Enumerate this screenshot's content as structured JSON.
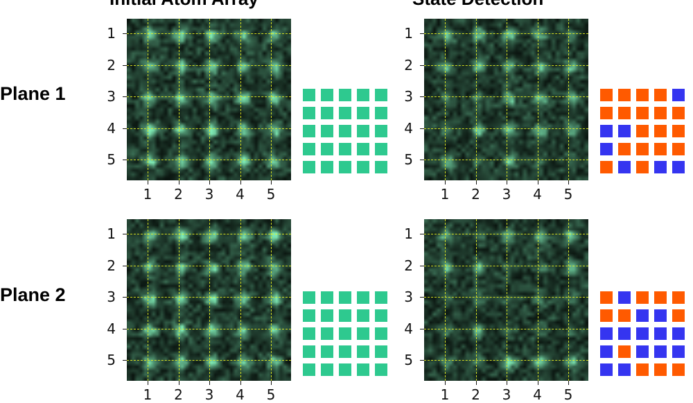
{
  "columns": [
    {
      "title": "Initial Atom Array"
    },
    {
      "title": "State Detection"
    }
  ],
  "rows": [
    {
      "label": "Plane 1"
    },
    {
      "label": "Plane 2"
    }
  ],
  "ticks": [
    "1",
    "2",
    "3",
    "4",
    "5"
  ],
  "colors": {
    "atom": "#2ec98f",
    "orange": "#ff5a00",
    "blue": "#3535f0",
    "grid_line": "#e8f020"
  },
  "legend": {
    "O": "orange",
    "B": "blue",
    "G": "atom"
  },
  "initial_arrays": [
    [
      "GGGGG",
      "GGGGG",
      "GGGGG",
      "GGGGG",
      "GGGGG"
    ],
    [
      "GGGGG",
      "GGGGG",
      "GGGGG",
      "GGGGG",
      "GGGGG"
    ]
  ],
  "detected_states": [
    [
      "OOOOB",
      "OOOOO",
      "BBOOO",
      "BOOOO",
      "OBOBB"
    ],
    [
      "OBOOO",
      "OOBBO",
      "BBBBB",
      "BOBBB",
      "BBOOO"
    ]
  ]
}
